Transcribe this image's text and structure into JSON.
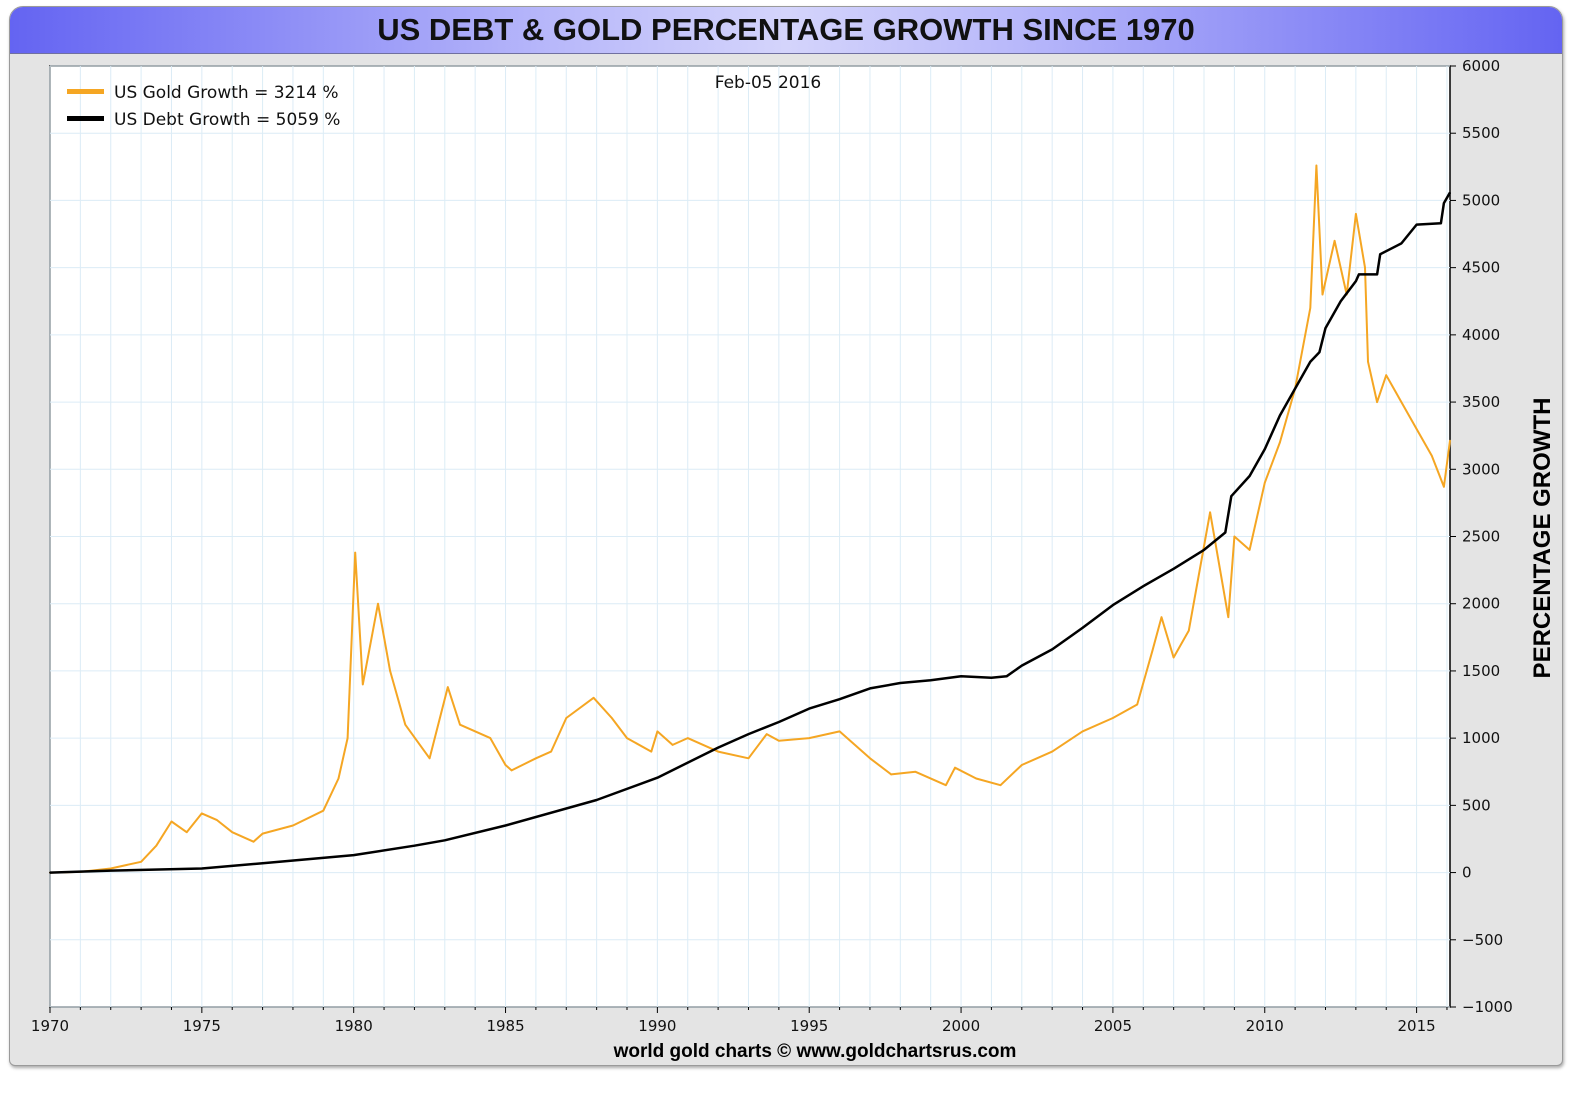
{
  "chart_data": {
    "type": "line",
    "title": "US DEBT & GOLD PERCENTAGE GROWTH SINCE 1970",
    "date_label": "Feb-05  2016",
    "ylabel": "PERCENTAGE GROWTH",
    "xlabel": "",
    "footer": "world gold charts © www.goldchartsrus.com",
    "xlim": [
      1970,
      2016.1
    ],
    "ylim": [
      -1000,
      6000
    ],
    "x_ticks": [
      1970,
      1975,
      1980,
      1985,
      1990,
      1995,
      2000,
      2005,
      2010,
      2015
    ],
    "y_ticks": [
      6000,
      5500,
      5000,
      4500,
      4000,
      3500,
      3000,
      2500,
      2000,
      1500,
      1000,
      500,
      0,
      -500,
      -1000
    ],
    "y_axis_side": "right",
    "grid": true,
    "legend_position": "top-left",
    "series": [
      {
        "name": "US Gold Growth = 3214 %",
        "color": "#f5a623",
        "points": [
          [
            1970,
            0
          ],
          [
            1971,
            5
          ],
          [
            1972,
            30
          ],
          [
            1973,
            80
          ],
          [
            1973.5,
            200
          ],
          [
            1974,
            380
          ],
          [
            1974.5,
            300
          ],
          [
            1975,
            440
          ],
          [
            1975.5,
            390
          ],
          [
            1976,
            300
          ],
          [
            1976.7,
            230
          ],
          [
            1977,
            290
          ],
          [
            1978,
            350
          ],
          [
            1979,
            460
          ],
          [
            1979.5,
            700
          ],
          [
            1979.8,
            1000
          ],
          [
            1980.05,
            2380
          ],
          [
            1980.3,
            1400
          ],
          [
            1980.8,
            2000
          ],
          [
            1981.2,
            1500
          ],
          [
            1981.7,
            1100
          ],
          [
            1982.5,
            850
          ],
          [
            1983.1,
            1380
          ],
          [
            1983.5,
            1100
          ],
          [
            1984.5,
            1000
          ],
          [
            1985,
            800
          ],
          [
            1985.2,
            760
          ],
          [
            1986,
            850
          ],
          [
            1986.5,
            900
          ],
          [
            1987,
            1150
          ],
          [
            1987.9,
            1300
          ],
          [
            1988.5,
            1150
          ],
          [
            1989,
            1000
          ],
          [
            1989.8,
            900
          ],
          [
            1990,
            1050
          ],
          [
            1990.5,
            950
          ],
          [
            1991,
            1000
          ],
          [
            1992,
            900
          ],
          [
            1993,
            850
          ],
          [
            1993.6,
            1030
          ],
          [
            1994,
            980
          ],
          [
            1995,
            1000
          ],
          [
            1996,
            1050
          ],
          [
            1997,
            850
          ],
          [
            1997.7,
            730
          ],
          [
            1998.5,
            750
          ],
          [
            1999.5,
            650
          ],
          [
            1999.8,
            780
          ],
          [
            2000.5,
            700
          ],
          [
            2001.3,
            650
          ],
          [
            2002,
            800
          ],
          [
            2003,
            900
          ],
          [
            2004,
            1050
          ],
          [
            2005,
            1150
          ],
          [
            2005.8,
            1250
          ],
          [
            2006.3,
            1650
          ],
          [
            2006.6,
            1900
          ],
          [
            2007,
            1600
          ],
          [
            2007.5,
            1800
          ],
          [
            2008.2,
            2680
          ],
          [
            2008.8,
            1900
          ],
          [
            2009,
            2500
          ],
          [
            2009.5,
            2400
          ],
          [
            2010,
            2900
          ],
          [
            2010.5,
            3200
          ],
          [
            2011,
            3600
          ],
          [
            2011.5,
            4200
          ],
          [
            2011.7,
            5260
          ],
          [
            2011.9,
            4300
          ],
          [
            2012.3,
            4700
          ],
          [
            2012.7,
            4300
          ],
          [
            2013,
            4900
          ],
          [
            2013.3,
            4500
          ],
          [
            2013.4,
            3800
          ],
          [
            2013.7,
            3500
          ],
          [
            2014,
            3700
          ],
          [
            2014.5,
            3500
          ],
          [
            2015,
            3300
          ],
          [
            2015.5,
            3100
          ],
          [
            2015.9,
            2870
          ],
          [
            2016.1,
            3214
          ]
        ]
      },
      {
        "name": "US Debt Growth = 5059 %",
        "color": "#000000",
        "points": [
          [
            1970,
            0
          ],
          [
            1972,
            15
          ],
          [
            1975,
            30
          ],
          [
            1977,
            70
          ],
          [
            1980,
            130
          ],
          [
            1982,
            200
          ],
          [
            1983,
            240
          ],
          [
            1985,
            350
          ],
          [
            1988,
            540
          ],
          [
            1990,
            706
          ],
          [
            1992,
            930
          ],
          [
            1993,
            1030
          ],
          [
            1994,
            1120
          ],
          [
            1995,
            1220
          ],
          [
            1996,
            1290
          ],
          [
            1997,
            1370
          ],
          [
            1998,
            1410
          ],
          [
            1999,
            1430
          ],
          [
            2000,
            1460
          ],
          [
            2001,
            1450
          ],
          [
            2001.5,
            1460
          ],
          [
            2002,
            1540
          ],
          [
            2003,
            1660
          ],
          [
            2004,
            1820
          ],
          [
            2005,
            1990
          ],
          [
            2006,
            2130
          ],
          [
            2007,
            2260
          ],
          [
            2008,
            2400
          ],
          [
            2008.7,
            2530
          ],
          [
            2008.9,
            2800
          ],
          [
            2009.5,
            2950
          ],
          [
            2010,
            3150
          ],
          [
            2010.5,
            3400
          ],
          [
            2011,
            3600
          ],
          [
            2011.5,
            3800
          ],
          [
            2011.8,
            3870
          ],
          [
            2012,
            4050
          ],
          [
            2012.5,
            4250
          ],
          [
            2013,
            4400
          ],
          [
            2013.1,
            4450
          ],
          [
            2013.7,
            4450
          ],
          [
            2013.8,
            4600
          ],
          [
            2014.5,
            4680
          ],
          [
            2015,
            4820
          ],
          [
            2015.8,
            4830
          ],
          [
            2015.9,
            4980
          ],
          [
            2016.1,
            5059
          ]
        ]
      }
    ]
  }
}
